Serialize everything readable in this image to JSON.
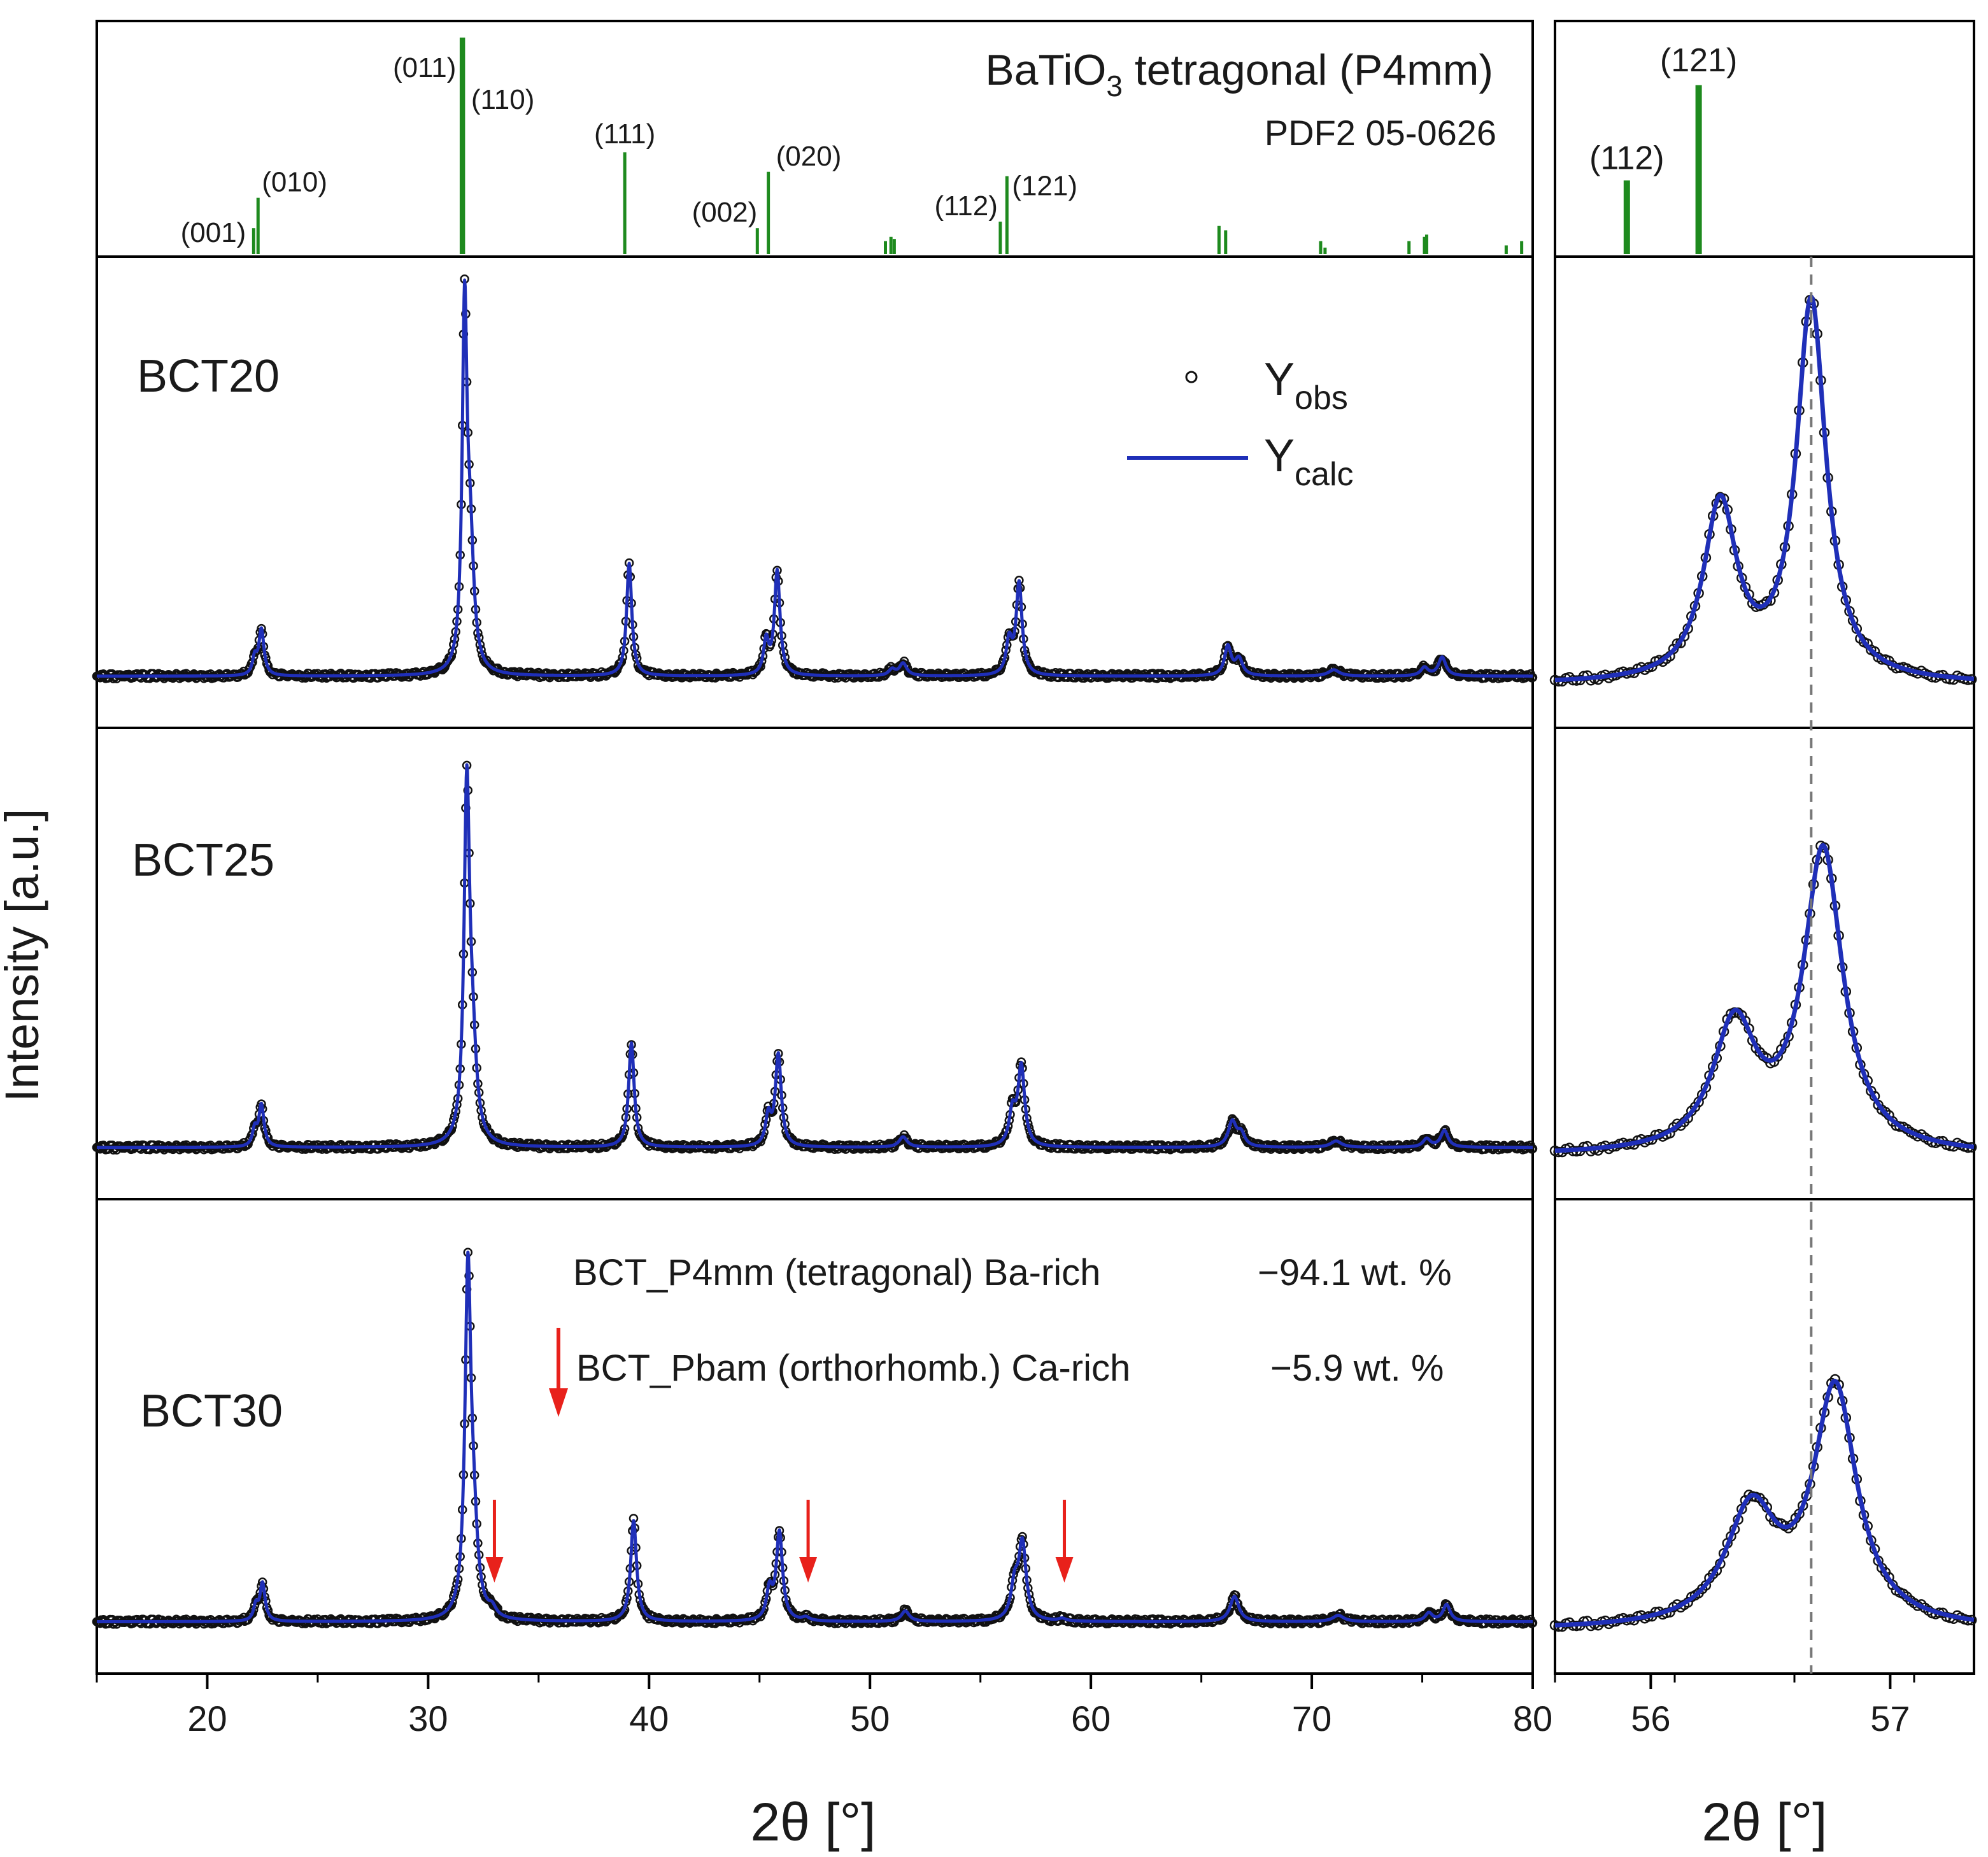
{
  "colors": {
    "reference": "#1e8a1e",
    "calc": "#1f2fb8",
    "obs": "#111111",
    "arrow": "#e8211b",
    "guide": "#777777"
  },
  "y_axis_label": "Intensity [a.u.]",
  "reference": {
    "title_prefix": "BaTiO",
    "title_sub": "3",
    "title_suffix": " tetragonal (P4mm)",
    "pdf_card": "PDF2 05-0626"
  },
  "legend": {
    "obs_main": "Y",
    "obs_sub": "obs",
    "calc_main": "Y",
    "calc_sub": "calc"
  },
  "samples": [
    "BCT20",
    "BCT25",
    "BCT30"
  ],
  "phases": {
    "tetragonal": "BCT_P4mm (tetragonal)  Ba-rich",
    "tetragonal_wt": "−94.1 wt. %",
    "ortho": "BCT_Pbam (orthorhomb.) Ca-rich",
    "ortho_wt": "−5.9 wt. %"
  },
  "x_axis_label": "2θ [°]",
  "chart_data": [
    {
      "type": "line",
      "title": "BaTiO3 tetragonal (P4mm) PDF2 05-0626 reference pattern",
      "role": "reference-sticks-main",
      "xlim": [
        15,
        80
      ],
      "ylim": [
        0,
        100
      ],
      "sticks": [
        {
          "x": 22.1,
          "h": 12,
          "label": "(001)"
        },
        {
          "x": 22.3,
          "h": 26,
          "label": "(010)"
        },
        {
          "x": 31.5,
          "h": 100,
          "label": "(011)"
        },
        {
          "x": 31.6,
          "h": 100,
          "label": "(110)"
        },
        {
          "x": 38.9,
          "h": 47,
          "label": "(111)"
        },
        {
          "x": 44.9,
          "h": 12,
          "label": "(002)"
        },
        {
          "x": 45.4,
          "h": 38,
          "label": "(020)"
        },
        {
          "x": 50.7,
          "h": 6,
          "label": ""
        },
        {
          "x": 50.95,
          "h": 8,
          "label": ""
        },
        {
          "x": 51.1,
          "h": 7,
          "label": ""
        },
        {
          "x": 55.9,
          "h": 15,
          "label": "(112)"
        },
        {
          "x": 56.2,
          "h": 36,
          "label": "(121)"
        },
        {
          "x": 65.8,
          "h": 13,
          "label": ""
        },
        {
          "x": 66.1,
          "h": 11,
          "label": ""
        },
        {
          "x": 70.4,
          "h": 6,
          "label": ""
        },
        {
          "x": 70.6,
          "h": 3,
          "label": ""
        },
        {
          "x": 74.4,
          "h": 6,
          "label": ""
        },
        {
          "x": 75.1,
          "h": 8,
          "label": ""
        },
        {
          "x": 75.2,
          "h": 9,
          "label": ""
        },
        {
          "x": 78.8,
          "h": 4,
          "label": ""
        },
        {
          "x": 79.5,
          "h": 6,
          "label": ""
        }
      ]
    },
    {
      "type": "line",
      "role": "reference-sticks-zoom",
      "xlim": [
        55.6,
        57.35
      ],
      "ylim": [
        0,
        100
      ],
      "sticks": [
        {
          "x": 55.9,
          "h": 34,
          "label": "(112)"
        },
        {
          "x": 56.2,
          "h": 78,
          "label": "(121)"
        }
      ]
    },
    {
      "type": "line",
      "role": "patterns-main",
      "xlabel": "2θ [°]",
      "ylabel": "Intensity [a.u.]",
      "xlim": [
        15,
        80
      ],
      "xticks": [
        20,
        30,
        40,
        50,
        60,
        70,
        80
      ],
      "ylim": [
        0,
        100
      ],
      "series": [
        {
          "name": "BCT20",
          "baseline": 4,
          "peaks": [
            {
              "x": 22.15,
              "h": 4,
              "w": 0.12
            },
            {
              "x": 22.45,
              "h": 11,
              "w": 0.14
            },
            {
              "x": 31.65,
              "h": 84,
              "w": 0.13
            },
            {
              "x": 31.9,
              "h": 28,
              "w": 0.2
            },
            {
              "x": 39.1,
              "h": 27,
              "w": 0.14
            },
            {
              "x": 45.3,
              "h": 8,
              "w": 0.14
            },
            {
              "x": 45.8,
              "h": 25,
              "w": 0.15
            },
            {
              "x": 51.0,
              "h": 1.5,
              "w": 0.18
            },
            {
              "x": 51.5,
              "h": 3,
              "w": 0.2
            },
            {
              "x": 56.3,
              "h": 8,
              "w": 0.16
            },
            {
              "x": 56.75,
              "h": 22,
              "w": 0.16
            },
            {
              "x": 66.2,
              "h": 7,
              "w": 0.18
            },
            {
              "x": 66.7,
              "h": 4,
              "w": 0.2
            },
            {
              "x": 71.0,
              "h": 1.5,
              "w": 0.3
            },
            {
              "x": 75.1,
              "h": 2,
              "w": 0.2
            },
            {
              "x": 75.9,
              "h": 4.5,
              "w": 0.2
            }
          ]
        },
        {
          "name": "BCT25",
          "baseline": 4,
          "peaks": [
            {
              "x": 22.15,
              "h": 4,
              "w": 0.12
            },
            {
              "x": 22.45,
              "h": 10,
              "w": 0.14
            },
            {
              "x": 31.75,
              "h": 83,
              "w": 0.15
            },
            {
              "x": 32.0,
              "h": 20,
              "w": 0.22
            },
            {
              "x": 39.2,
              "h": 25,
              "w": 0.15
            },
            {
              "x": 45.4,
              "h": 7,
              "w": 0.15
            },
            {
              "x": 45.85,
              "h": 22,
              "w": 0.16
            },
            {
              "x": 51.5,
              "h": 2.5,
              "w": 0.22
            },
            {
              "x": 56.45,
              "h": 8,
              "w": 0.18
            },
            {
              "x": 56.85,
              "h": 19,
              "w": 0.18
            },
            {
              "x": 66.4,
              "h": 6,
              "w": 0.22
            },
            {
              "x": 66.8,
              "h": 3,
              "w": 0.2
            },
            {
              "x": 71.1,
              "h": 1.5,
              "w": 0.3
            },
            {
              "x": 75.2,
              "h": 2,
              "w": 0.2
            },
            {
              "x": 76.0,
              "h": 4,
              "w": 0.2
            }
          ]
        },
        {
          "name": "BCT30",
          "baseline": 4,
          "peaks": [
            {
              "x": 22.2,
              "h": 3.5,
              "w": 0.12
            },
            {
              "x": 22.5,
              "h": 9,
              "w": 0.14
            },
            {
              "x": 31.8,
              "h": 80,
              "w": 0.16
            },
            {
              "x": 32.05,
              "h": 18,
              "w": 0.22
            },
            {
              "x": 32.9,
              "h": 2,
              "w": 0.2
            },
            {
              "x": 39.3,
              "h": 24,
              "w": 0.16
            },
            {
              "x": 45.45,
              "h": 7,
              "w": 0.16
            },
            {
              "x": 45.9,
              "h": 21,
              "w": 0.17
            },
            {
              "x": 47.1,
              "h": 0.8,
              "w": 0.2
            },
            {
              "x": 51.6,
              "h": 2.5,
              "w": 0.22
            },
            {
              "x": 56.55,
              "h": 8,
              "w": 0.2
            },
            {
              "x": 56.9,
              "h": 18,
              "w": 0.2
            },
            {
              "x": 58.7,
              "h": 0.6,
              "w": 0.2
            },
            {
              "x": 66.5,
              "h": 6,
              "w": 0.24
            },
            {
              "x": 71.2,
              "h": 1.5,
              "w": 0.3
            },
            {
              "x": 75.3,
              "h": 2,
              "w": 0.2
            },
            {
              "x": 76.1,
              "h": 4,
              "w": 0.2
            }
          ]
        }
      ],
      "arrows_x": [
        33.0,
        47.2,
        58.8
      ]
    },
    {
      "type": "line",
      "role": "patterns-zoom",
      "xlabel": "2θ [°]",
      "xlim": [
        55.6,
        57.35
      ],
      "xticks": [
        56,
        57
      ],
      "guide_x": 56.67,
      "ylim": [
        0,
        100
      ],
      "series": [
        {
          "name": "BCT20",
          "baseline": 2,
          "peaks": [
            {
              "x": 56.29,
              "h": 42,
              "w": 0.085
            },
            {
              "x": 56.67,
              "h": 91,
              "w": 0.075
            }
          ]
        },
        {
          "name": "BCT25",
          "baseline": 2,
          "peaks": [
            {
              "x": 56.35,
              "h": 30,
              "w": 0.11
            },
            {
              "x": 56.72,
              "h": 72,
              "w": 0.1
            }
          ]
        },
        {
          "name": "BCT30",
          "baseline": 2,
          "peaks": [
            {
              "x": 56.42,
              "h": 27,
              "w": 0.13
            },
            {
              "x": 56.77,
              "h": 56,
              "w": 0.11
            }
          ]
        }
      ]
    }
  ]
}
